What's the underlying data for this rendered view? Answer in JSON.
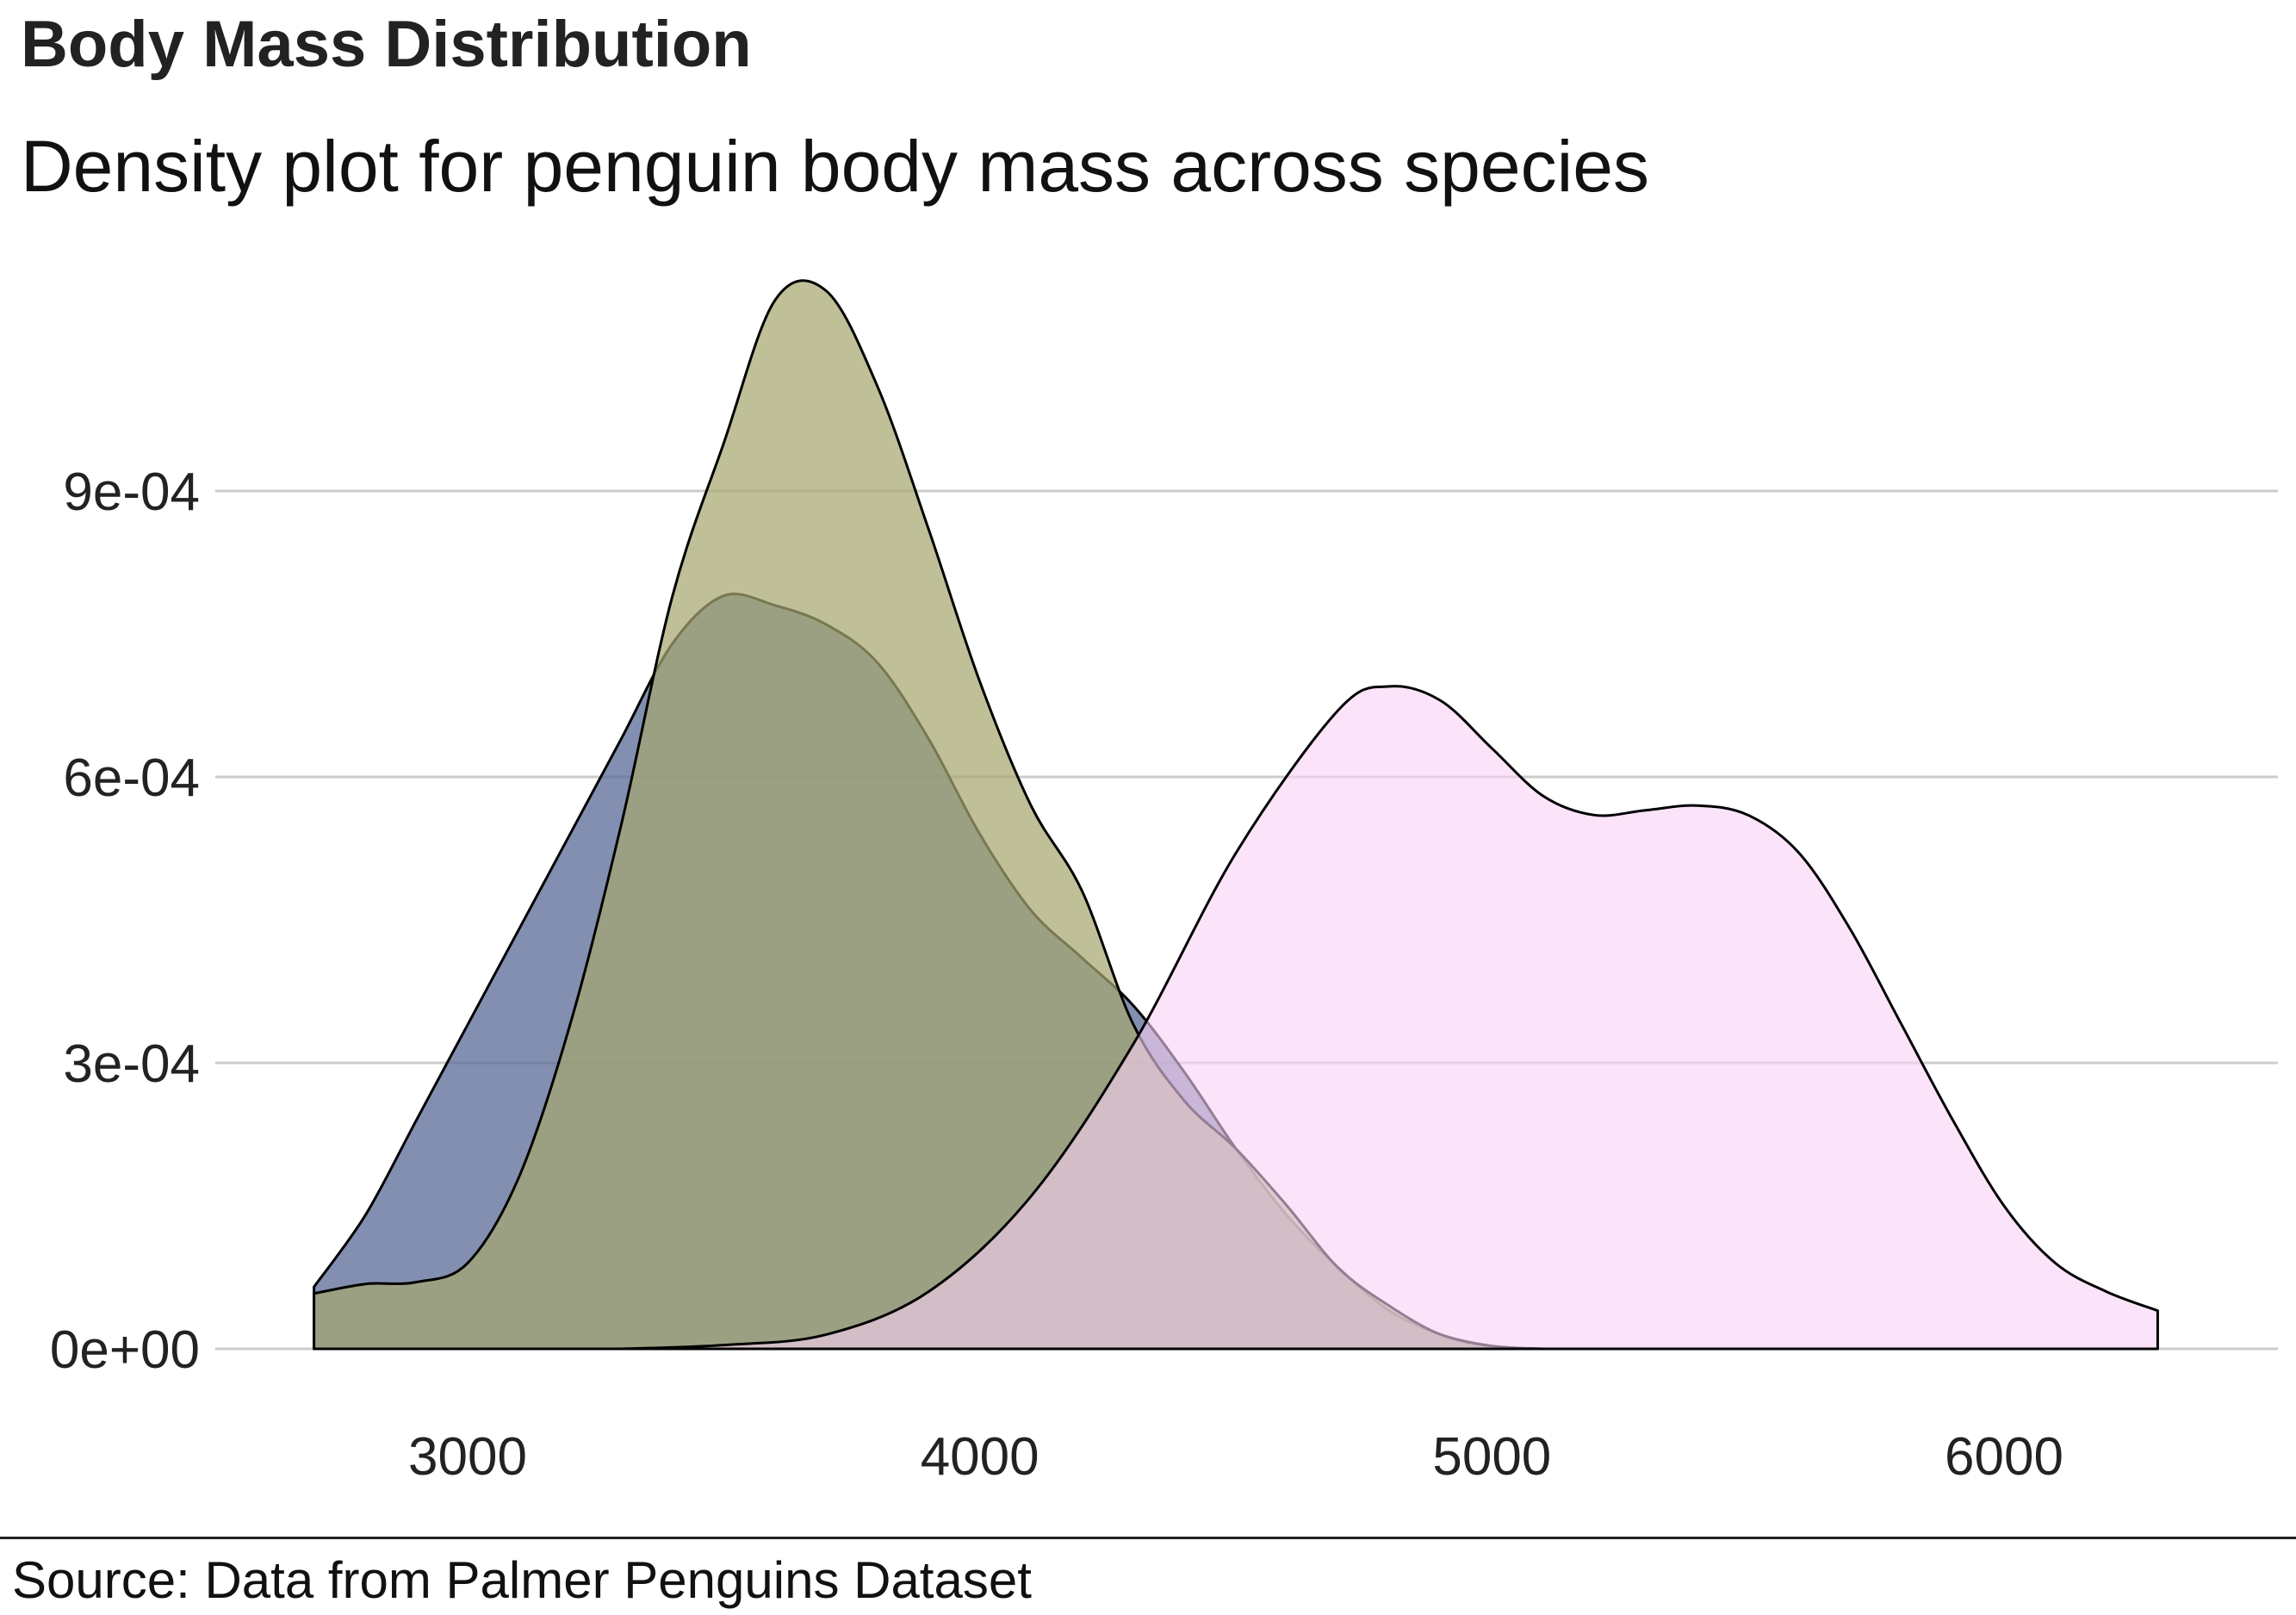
{
  "chart_data": {
    "type": "area",
    "title": "Body Mass Distribution",
    "subtitle": "Density plot for penguin body mass across species",
    "source": "Source: Data from Palmer Penguins Dataset",
    "xlabel": "",
    "ylabel": "",
    "xlim": [
      2700,
      6300
    ],
    "ylim": [
      0,
      0.00112
    ],
    "x_ticks": [
      3000,
      4000,
      5000,
      6000
    ],
    "x_tick_labels": [
      "3000",
      "4000",
      "5000",
      "6000"
    ],
    "y_ticks": [
      0,
      0.0003,
      0.0006,
      0.0009
    ],
    "y_tick_labels": [
      "0e+00",
      "3e-04",
      "6e-04",
      "9e-04"
    ],
    "grid": "horizontal",
    "legend": "none",
    "series": [
      {
        "color": "#5a6a96",
        "fill_opacity": 0.75,
        "points": [
          [
            2700,
            6.5e-05
          ],
          [
            2800,
            0.00014
          ],
          [
            2900,
            0.00024
          ],
          [
            3000,
            0.00034
          ],
          [
            3100,
            0.00044
          ],
          [
            3200,
            0.00054
          ],
          [
            3300,
            0.00064
          ],
          [
            3400,
            0.00074
          ],
          [
            3500,
            0.00079
          ],
          [
            3600,
            0.00078
          ],
          [
            3700,
            0.00076
          ],
          [
            3800,
            0.00072
          ],
          [
            3900,
            0.00064
          ],
          [
            4000,
            0.00054
          ],
          [
            4100,
            0.00046
          ],
          [
            4200,
            0.00041
          ],
          [
            4300,
            0.00036
          ],
          [
            4400,
            0.00029
          ],
          [
            4500,
            0.00021
          ],
          [
            4600,
            0.00014
          ],
          [
            4700,
            8.5e-05
          ],
          [
            4800,
            4e-05
          ],
          [
            4900,
            1.5e-05
          ],
          [
            5000,
            3e-06
          ],
          [
            5100,
            0
          ]
        ]
      },
      {
        "color": "#a6a670",
        "fill_opacity": 0.72,
        "points": [
          [
            2700,
            5.8e-05
          ],
          [
            2800,
            6.8e-05
          ],
          [
            2900,
            7e-05
          ],
          [
            3000,
            9e-05
          ],
          [
            3100,
            0.00018
          ],
          [
            3200,
            0.00034
          ],
          [
            3300,
            0.00055
          ],
          [
            3400,
            0.00079
          ],
          [
            3500,
            0.00095
          ],
          [
            3600,
            0.0011
          ],
          [
            3700,
            0.00111
          ],
          [
            3800,
            0.00101
          ],
          [
            3900,
            0.00086
          ],
          [
            4000,
            0.0007
          ],
          [
            4100,
            0.00057
          ],
          [
            4200,
            0.00048
          ],
          [
            4300,
            0.00034
          ],
          [
            4400,
            0.00026
          ],
          [
            4500,
            0.00021
          ],
          [
            4600,
            0.00015
          ],
          [
            4700,
            8.5e-05
          ],
          [
            4800,
            4.5e-05
          ],
          [
            4900,
            1.5e-05
          ],
          [
            5000,
            3e-06
          ],
          [
            5100,
            0
          ]
        ]
      },
      {
        "color": "#f8d0f5",
        "fill_opacity": 0.6,
        "points": [
          [
            3300,
            0
          ],
          [
            3500,
            4e-06
          ],
          [
            3700,
            1.5e-05
          ],
          [
            3900,
            6e-05
          ],
          [
            4100,
            0.00016
          ],
          [
            4300,
            0.00032
          ],
          [
            4500,
            0.00052
          ],
          [
            4700,
            0.00067
          ],
          [
            4800,
            0.000695
          ],
          [
            4900,
            0.00068
          ],
          [
            5000,
            0.00063
          ],
          [
            5100,
            0.00058
          ],
          [
            5200,
            0.00056
          ],
          [
            5300,
            0.000565
          ],
          [
            5400,
            0.00057
          ],
          [
            5500,
            0.00056
          ],
          [
            5600,
            0.00052
          ],
          [
            5700,
            0.00044
          ],
          [
            5800,
            0.00034
          ],
          [
            5900,
            0.00024
          ],
          [
            6000,
            0.00015
          ],
          [
            6100,
            9e-05
          ],
          [
            6200,
            6e-05
          ],
          [
            6300,
            4e-05
          ]
        ]
      }
    ]
  }
}
